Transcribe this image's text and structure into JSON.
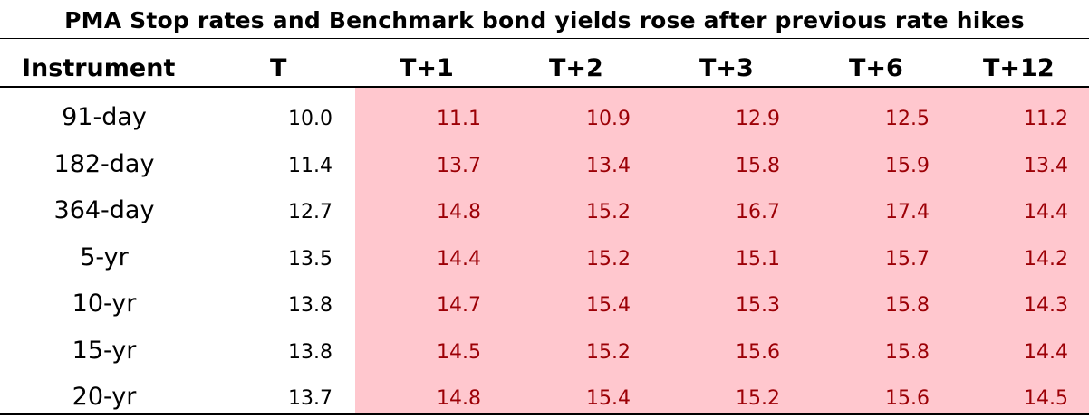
{
  "chart_data": {
    "type": "table",
    "title": "PMA Stop rates and Benchmark bond yields rose after previous rate hikes",
    "columns": [
      "Instrument",
      "T",
      "T+1",
      "T+2",
      "T+3",
      "T+6",
      "T+12"
    ],
    "rows": [
      {
        "instrument": "91-day",
        "values": [
          "10.0",
          "11.1",
          "10.9",
          "12.9",
          "12.5",
          "11.2"
        ]
      },
      {
        "instrument": "182-day",
        "values": [
          "11.4",
          "13.7",
          "13.4",
          "15.8",
          "15.9",
          "13.4"
        ]
      },
      {
        "instrument": "364-day",
        "values": [
          "12.7",
          "14.8",
          "15.2",
          "16.7",
          "17.4",
          "14.4"
        ]
      },
      {
        "instrument": "5-yr",
        "values": [
          "13.5",
          "14.4",
          "15.2",
          "15.1",
          "15.7",
          "14.2"
        ]
      },
      {
        "instrument": "10-yr",
        "values": [
          "13.8",
          "14.7",
          "15.4",
          "15.3",
          "15.8",
          "14.3"
        ]
      },
      {
        "instrument": "15-yr",
        "values": [
          "13.8",
          "14.5",
          "15.2",
          "15.6",
          "15.8",
          "14.4"
        ]
      },
      {
        "instrument": "20-yr",
        "values": [
          "13.7",
          "14.8",
          "15.4",
          "15.2",
          "15.6",
          "14.5"
        ]
      }
    ],
    "highlight": {
      "columns": [
        "T+1",
        "T+2",
        "T+3",
        "T+6",
        "T+12"
      ],
      "fill": "#ffc7ce",
      "text": "#9c0006"
    }
  }
}
